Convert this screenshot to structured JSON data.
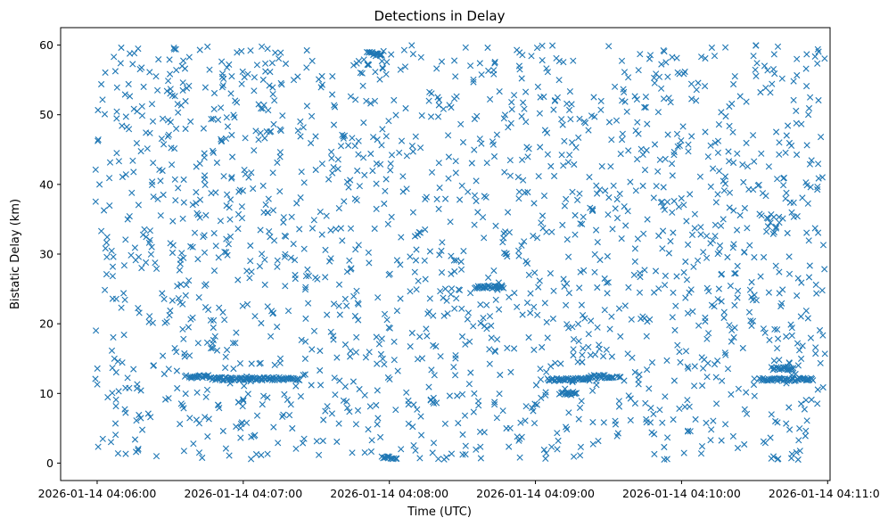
{
  "chart_data": {
    "type": "scatter",
    "title": "Detections in Delay",
    "xlabel": "Time (UTC)",
    "ylabel": "Bistatic Delay (km)",
    "marker": "x",
    "color": "#1f77b4",
    "grid": false,
    "legend": null,
    "xlim": [
      "2026-01-14 04:05:45",
      "2026-01-14 04:11:01"
    ],
    "ylim": [
      -2.5,
      62.5
    ],
    "x_ticks": [
      "2026-01-14 04:06:00",
      "2026-01-14 04:07:00",
      "2026-01-14 04:08:00",
      "2026-01-14 04:09:00",
      "2026-01-14 04:10:00",
      "2026-01-14 04:11:00"
    ],
    "y_ticks": [
      0,
      10,
      20,
      30,
      40,
      50,
      60
    ],
    "x_range": [
      "2026-01-14 04:05:59",
      "2026-01-14 04:10:59"
    ],
    "y_range": [
      0.5,
      60
    ],
    "approx_point_count": 1800,
    "structured_tracks": [
      {
        "x_start": "2026-01-14 04:06:38",
        "x_end": "2026-01-14 04:06:46",
        "y": 12.4
      },
      {
        "x_start": "2026-01-14 04:06:47",
        "x_end": "2026-01-14 04:07:23",
        "y": 12.1
      },
      {
        "x_start": "2026-01-14 04:08:35",
        "x_end": "2026-01-14 04:08:47",
        "y": 25.3
      },
      {
        "x_start": "2026-01-14 04:09:05",
        "x_end": "2026-01-14 04:09:22",
        "y": 12.0
      },
      {
        "x_start": "2026-01-14 04:09:22",
        "x_end": "2026-01-14 04:09:32",
        "y": 12.4
      },
      {
        "x_start": "2026-01-14 04:09:10",
        "x_end": "2026-01-14 04:09:17",
        "y": 10.0
      },
      {
        "x_start": "2026-01-14 04:07:57",
        "x_end": "2026-01-14 04:08:03",
        "y": 0.8
      },
      {
        "x_start": "2026-01-14 04:10:32",
        "x_end": "2026-01-14 04:10:54",
        "y": 12.0
      },
      {
        "x_start": "2026-01-14 04:10:37",
        "x_end": "2026-01-14 04:10:46",
        "y": 13.6
      },
      {
        "x_start": "2026-01-14 04:07:51",
        "x_end": "2026-01-14 04:07:57",
        "y": 58.8
      }
    ]
  }
}
